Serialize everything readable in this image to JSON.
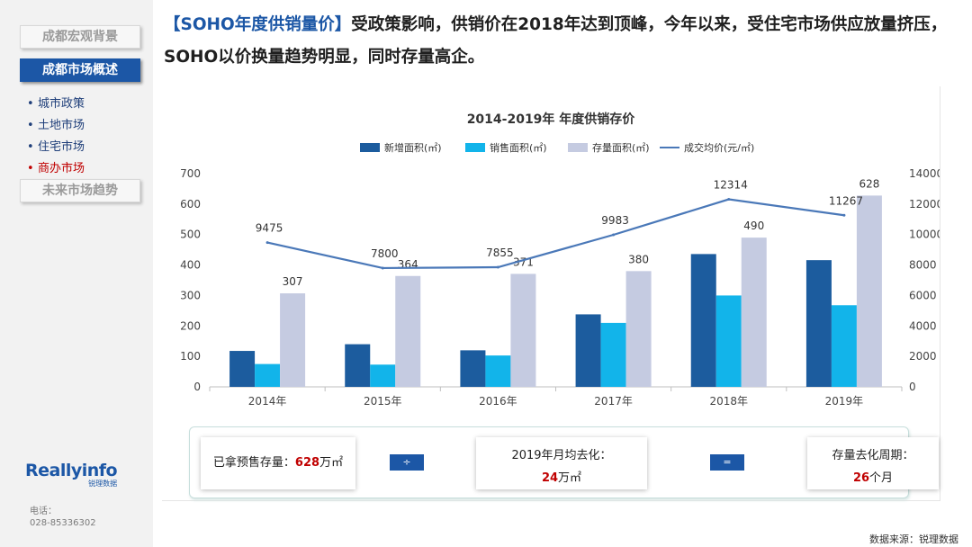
{
  "sidebar": {
    "nav": [
      {
        "label": "成都宏观背景"
      },
      {
        "label": "成都市场概述"
      },
      {
        "label": "未来市场趋势"
      }
    ],
    "sub_items": [
      {
        "label": "城市政策"
      },
      {
        "label": "土地市场"
      },
      {
        "label": "住宅市场"
      },
      {
        "label": "商办市场"
      }
    ],
    "logo_text": "Reallyinfo",
    "logo_sub": "锐理数据",
    "phone_label": "电话：",
    "phone_number": "028-85336302"
  },
  "headline": {
    "bracket_part": "【SOHO年度供销量价】",
    "text": "受政策影响，供销价在2018年达到顶峰，今年以来，受住宅市场供应放量挤压，SOHO以价换量趋势明显，同时存量高企。"
  },
  "chart_data": {
    "type": "bar",
    "title": "2014-2019年 年度供销存价",
    "categories": [
      "2014年",
      "2015年",
      "2016年",
      "2017年",
      "2018年",
      "2019年"
    ],
    "series": [
      {
        "name": "新增面积(㎡)",
        "type": "bar",
        "axis": "left",
        "color": "#1c5c9e",
        "values": [
          118,
          140,
          120,
          238,
          436,
          416
        ],
        "labels": [
          null,
          null,
          null,
          null,
          null,
          null
        ]
      },
      {
        "name": "销售面积(㎡)",
        "type": "bar",
        "axis": "left",
        "color": "#12b4ea",
        "values": [
          75,
          73,
          103,
          210,
          300,
          268
        ],
        "labels": [
          null,
          null,
          null,
          null,
          null,
          null
        ]
      },
      {
        "name": "存量面积(㎡)",
        "type": "bar",
        "axis": "left",
        "color": "#c5cbe1",
        "values": [
          307,
          364,
          371,
          380,
          490,
          628
        ],
        "labels": [
          "307",
          "364",
          "371",
          "380",
          "490",
          "628"
        ]
      },
      {
        "name": "成交均价(元/㎡)",
        "type": "line",
        "axis": "right",
        "color": "#4a78b8",
        "values": [
          9475,
          7800,
          7855,
          9983,
          12314,
          11267
        ],
        "labels": [
          "9475",
          "7800",
          "7855",
          "9983",
          "12314",
          "11267"
        ]
      }
    ],
    "ylim_left": [
      0,
      700
    ],
    "yticks_left": [
      "0",
      "100",
      "200",
      "300",
      "400",
      "500",
      "600",
      "700"
    ],
    "ylim_right": [
      0,
      14000
    ],
    "yticks_right": [
      "0",
      "2000",
      "4000",
      "6000",
      "8000",
      "10000",
      "12000",
      "14000"
    ],
    "legend_position": "top",
    "grid": false
  },
  "summary": {
    "stock_label": "已拿预售存量：",
    "stock_value": "628",
    "stock_unit": "万㎡",
    "op1": "÷",
    "monthly_label": "2019年月均去化：",
    "monthly_value": "24",
    "monthly_unit": "万㎡",
    "op2": "=",
    "cycle_label": "存量去化周期：",
    "cycle_value": "26",
    "cycle_unit": "个月"
  },
  "source": "数据来源：锐理数据",
  "watermark_text": "Reallyinfo"
}
